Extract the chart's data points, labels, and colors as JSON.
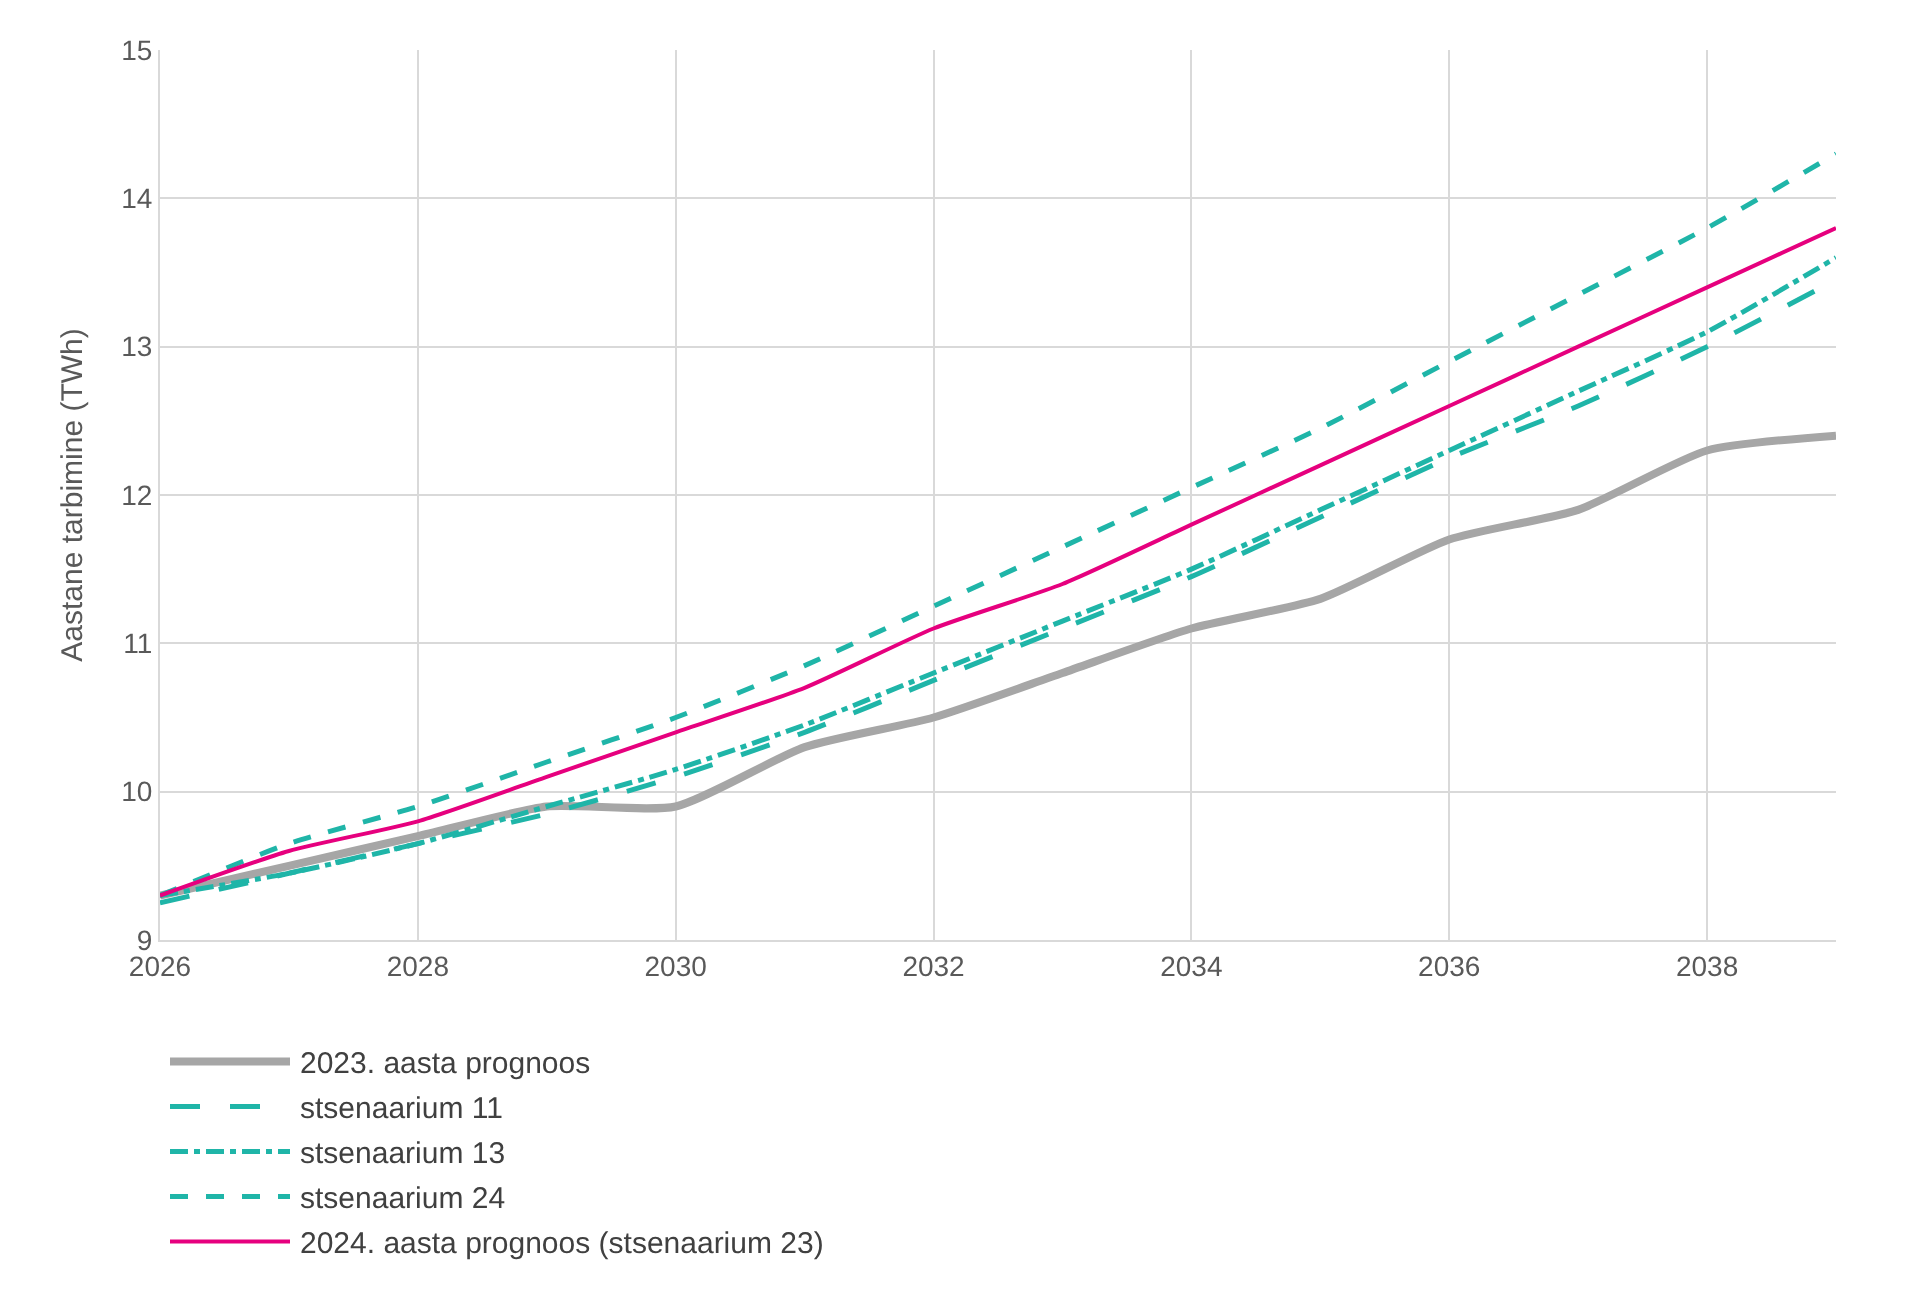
{
  "chart_data": {
    "type": "line",
    "ylabel": "Aastane tarbimine (TWh)",
    "x": [
      2026,
      2027,
      2028,
      2029,
      2030,
      2031,
      2032,
      2033,
      2034,
      2035,
      2036,
      2037,
      2038,
      2039
    ],
    "xlim": [
      2026,
      2039
    ],
    "xticks": [
      2026,
      2028,
      2030,
      2032,
      2034,
      2036,
      2038
    ],
    "ylim": [
      9,
      15
    ],
    "yticks": [
      9,
      10,
      11,
      12,
      13,
      14,
      15
    ],
    "grid": true,
    "legend": "bottom",
    "marker": "none",
    "series": [
      {
        "name": "2023. aasta prognoos",
        "color": "#a6a6a6",
        "line_style": "solid",
        "values": [
          9.3,
          9.5,
          9.7,
          9.9,
          9.9,
          10.3,
          10.5,
          10.8,
          11.1,
          11.3,
          11.7,
          11.9,
          12.3,
          12.4
        ]
      },
      {
        "name": "stsenaarium 11",
        "color": "#1fb5a8",
        "line_style": "longdash",
        "values": [
          9.25,
          9.45,
          9.65,
          9.85,
          10.1,
          10.4,
          10.75,
          11.1,
          11.45,
          11.85,
          12.25,
          12.6,
          13.0,
          13.45
        ]
      },
      {
        "name": "stsenaarium 13",
        "color": "#1fb5a8",
        "line_style": "dashdot",
        "values": [
          9.3,
          9.45,
          9.65,
          9.9,
          10.15,
          10.45,
          10.8,
          11.15,
          11.5,
          11.9,
          12.3,
          12.7,
          13.1,
          13.6
        ]
      },
      {
        "name": "stsenaarium 24",
        "color": "#1fb5a8",
        "line_style": "dashed",
        "values": [
          9.3,
          9.65,
          9.9,
          10.2,
          10.5,
          10.85,
          11.25,
          11.65,
          12.05,
          12.45,
          12.9,
          13.35,
          13.8,
          14.3
        ]
      },
      {
        "name": "2024. aasta prognoos (stsenaarium 23)",
        "color": "#e6007e",
        "line_style": "solid",
        "values": [
          9.3,
          9.6,
          9.8,
          10.1,
          10.4,
          10.7,
          11.1,
          11.4,
          11.8,
          12.2,
          12.6,
          13.0,
          13.4,
          13.8
        ]
      }
    ]
  }
}
